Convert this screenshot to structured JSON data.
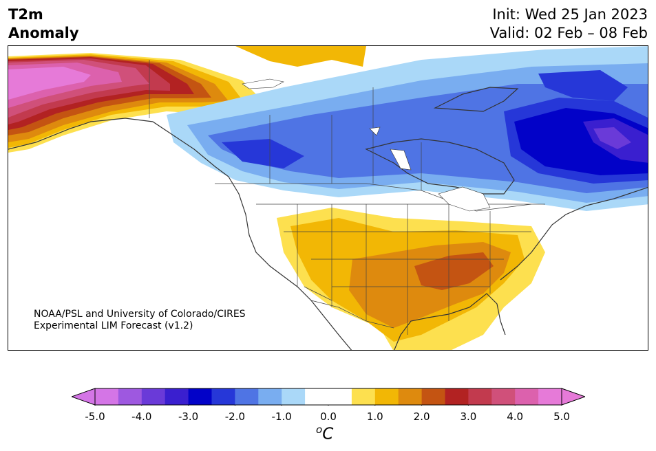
{
  "header": {
    "title_line1": "T2m",
    "title_line2": "Anomaly",
    "init": "Init: Wed 25 Jan 2023",
    "valid": "Valid: 02 Feb – 08 Feb"
  },
  "credit": {
    "line1": "NOAA/PSL and University of Colorado/CIRES",
    "line2": "Experimental LIM Forecast (v1.2)"
  },
  "colorbar": {
    "ticks": [
      "-5.0",
      "-4.0",
      "-3.0",
      "-2.0",
      "-1.0",
      "0.0",
      "1.0",
      "2.0",
      "3.0",
      "4.0",
      "5.0"
    ],
    "unit_base": "C",
    "unit_sup": "o",
    "under_color": "#d475e6",
    "over_color": "#e67ad8",
    "colors": [
      "#d475e6",
      "#9e58e0",
      "#6a3ad8",
      "#3a1fcf",
      "#0202c8",
      "#2637d8",
      "#4f74e4",
      "#79adf0",
      "#aad8f8",
      "#ffffff",
      "#ffffff",
      "#fde04f",
      "#f2b705",
      "#de8a0e",
      "#c45412",
      "#b22222",
      "#c23a4e",
      "#d0507a",
      "#dc61ad",
      "#e67ad8"
    ]
  },
  "map": {
    "region": "North America",
    "variable": "2 m temperature anomaly"
  }
}
